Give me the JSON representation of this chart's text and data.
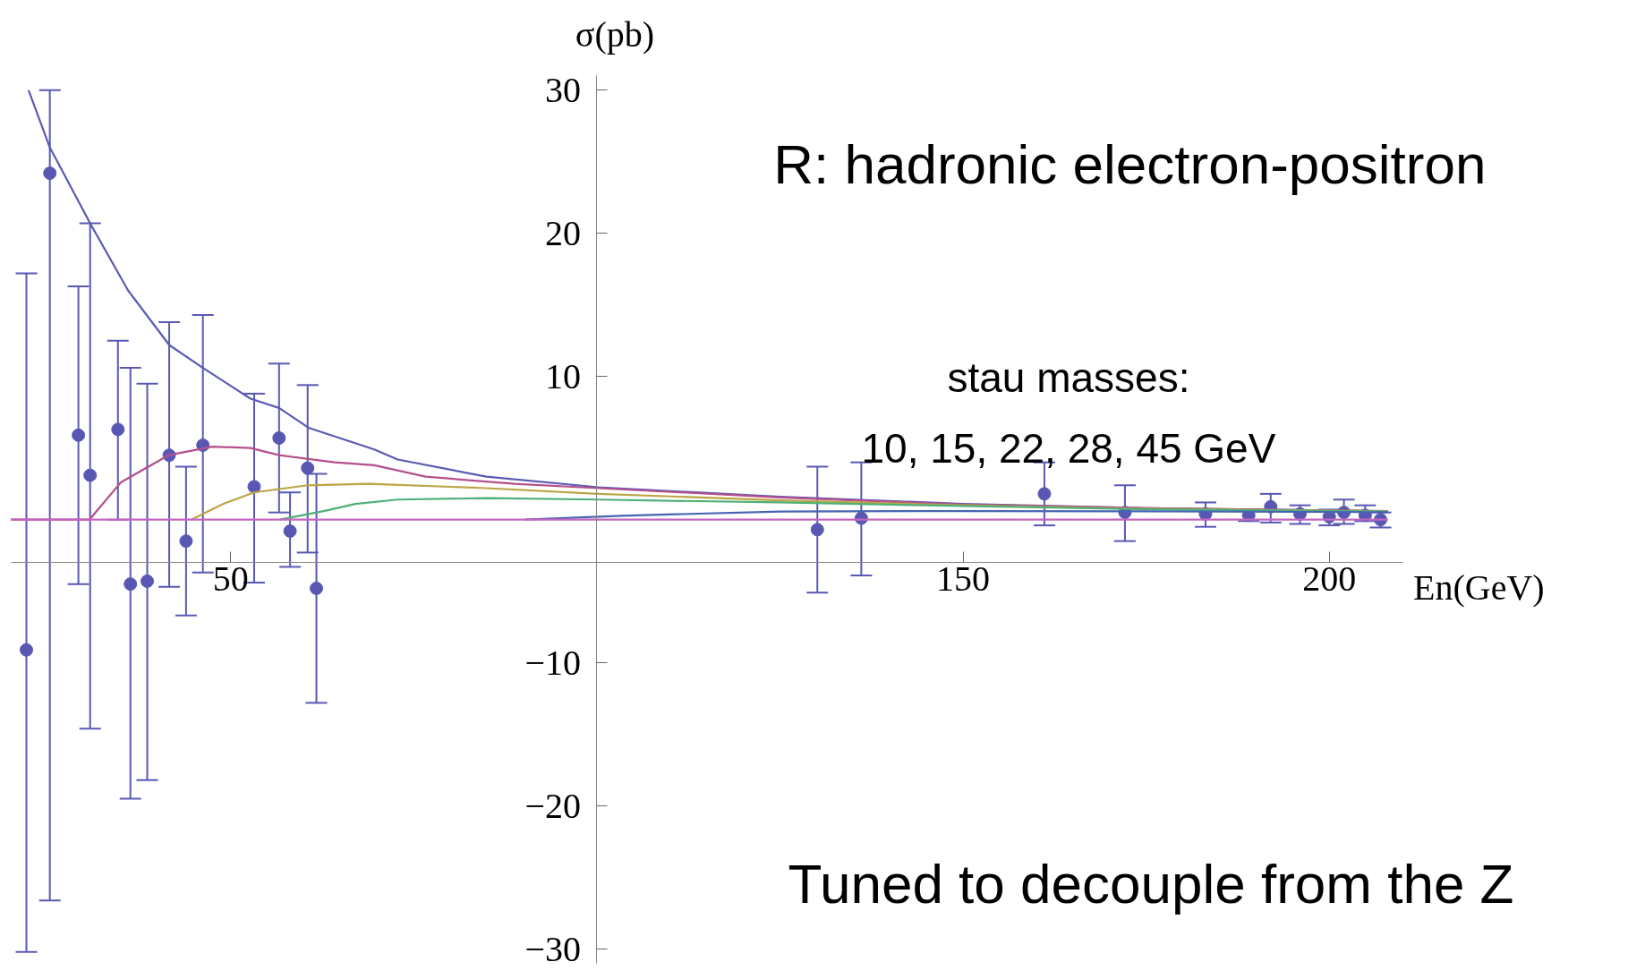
{
  "chart_data": {
    "type": "scatter",
    "xlabel": "En(GeV)",
    "ylabel": "σ(pb)",
    "annotations": [
      "R: hadronic electron-positron",
      "stau masses:",
      "10, 15, 22, 28, 45 GeV",
      "Tuned to decouple from the Z"
    ],
    "xlim": [
      20,
      210
    ],
    "ylim": [
      -31,
      31
    ],
    "xticks": [
      50,
      150,
      200
    ],
    "yticks": [
      -30,
      -20,
      -10,
      10,
      20,
      30
    ],
    "grid": false,
    "series": [
      {
        "marker": "circle",
        "color": "#5858b4",
        "x": [
          22.1,
          25.3,
          29.2,
          30.8,
          34.6,
          36.3,
          38.6,
          41.6,
          43.9,
          46.2,
          53.2,
          56.6,
          58.1,
          60.5,
          61.7,
          130.1,
          136.1,
          161.1,
          172.1,
          183.1,
          189.0,
          192.0,
          196.0,
          200.0,
          202.0,
          204.9,
          207.0
        ],
        "values": [
          -9.1,
          24.2,
          5.9,
          3.1,
          6.3,
          -4.5,
          -4.3,
          4.5,
          -1.5,
          5.2,
          2.3,
          5.7,
          -0.8,
          3.6,
          -4.8,
          -0.7,
          0.1,
          1.8,
          0.5,
          0.4,
          0.3,
          0.9,
          0.4,
          0.2,
          0.5,
          0.3,
          0.0
        ],
        "errors": [
          [
            -30.2,
            17.2
          ],
          [
            -26.6,
            30.0
          ],
          [
            -4.5,
            16.3
          ],
          [
            -14.6,
            20.7
          ],
          [
            0.0,
            12.5
          ],
          [
            -19.5,
            10.6
          ],
          [
            -18.2,
            9.5
          ],
          [
            -4.7,
            13.8
          ],
          [
            -6.7,
            3.7
          ],
          [
            -3.7,
            14.3
          ],
          [
            -4.4,
            8.8
          ],
          [
            0.5,
            10.9
          ],
          [
            -3.3,
            1.9
          ],
          [
            -2.3,
            9.4
          ],
          [
            -12.8,
            3.2
          ],
          [
            -5.1,
            3.7
          ],
          [
            -3.9,
            4.0
          ],
          [
            -0.4,
            4.0
          ],
          [
            -1.5,
            2.4
          ],
          [
            -0.5,
            1.2
          ],
          [
            -0.1,
            0.7
          ],
          [
            -0.2,
            1.8
          ],
          [
            -0.3,
            1.0
          ],
          [
            -0.4,
            0.7
          ],
          [
            -0.3,
            1.4
          ],
          [
            -0.1,
            1.0
          ],
          [
            -0.55,
            0.5
          ]
        ]
      },
      {
        "type": "line",
        "color": "#5a5ab4",
        "x": [
          22.4,
          25.3,
          30.8,
          36.0,
          41.6,
          46.2,
          52.7,
          56.6,
          60.7,
          69.6,
          72.8,
          84.9,
          100.2,
          125,
          150,
          175,
          208
        ],
        "values": [
          30.0,
          26.0,
          20.7,
          16.0,
          12.2,
          10.6,
          8.45,
          7.8,
          6.4,
          4.9,
          4.2,
          3.0,
          2.26,
          1.6,
          1.1,
          0.8,
          0.6
        ]
      },
      {
        "type": "line",
        "color": "#b4508c",
        "x": [
          20,
          30.7,
          35.0,
          41.5,
          47.5,
          52.7,
          56.6,
          64.2,
          69.6,
          76.6,
          88.7,
          100.2,
          125,
          150,
          175,
          208
        ],
        "values": [
          0,
          0,
          2.6,
          4.5,
          5.1,
          5.0,
          4.5,
          4.0,
          3.8,
          3.0,
          2.5,
          2.2,
          1.55,
          1.05,
          0.8,
          0.6
        ]
      },
      {
        "type": "line",
        "color": "#bca444",
        "x": [
          44.6,
          49.0,
          53.2,
          60.5,
          68.8,
          84.9,
          100.2,
          125,
          150,
          175,
          208
        ],
        "values": [
          0,
          1.1,
          1.9,
          2.4,
          2.5,
          2.2,
          1.8,
          1.35,
          1.0,
          0.75,
          0.58
        ]
      },
      {
        "type": "line",
        "color": "#4eb076",
        "x": [
          56.7,
          62.7,
          67.0,
          72.8,
          84.9,
          100.2,
          125,
          150,
          175,
          208
        ],
        "values": [
          0,
          0.6,
          1.1,
          1.4,
          1.5,
          1.4,
          1.2,
          0.95,
          0.72,
          0.57
        ]
      },
      {
        "type": "line",
        "color": "#4664b4",
        "x": [
          90.2,
          103.4,
          125,
          150,
          175,
          208
        ],
        "values": [
          0,
          0.27,
          0.57,
          0.6,
          0.58,
          0.52
        ]
      },
      {
        "type": "line",
        "color": "#c466c0",
        "x": [
          20,
          208
        ],
        "values": [
          0,
          0
        ]
      }
    ]
  }
}
